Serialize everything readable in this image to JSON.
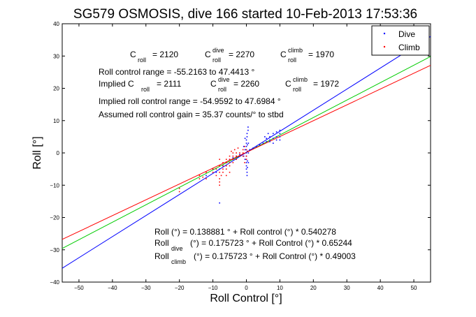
{
  "chart_data": {
    "type": "scatter",
    "title": "SG579 OSMOSIS, dive 166 started 10-Feb-2013 17:53:36",
    "xlabel": "Roll Control [°]",
    "ylabel": "Roll [°]",
    "xlim": [
      -55,
      55
    ],
    "ylim": [
      -40,
      40
    ],
    "xticks": [
      -50,
      -40,
      -30,
      -20,
      -10,
      0,
      10,
      20,
      30,
      40,
      50
    ],
    "yticks": [
      -40,
      -30,
      -20,
      -10,
      0,
      10,
      20,
      30,
      40
    ],
    "grid": false,
    "legend": {
      "placement": "top-right",
      "entries": [
        {
          "label": "Dive",
          "color": "#0000ff"
        },
        {
          "label": "Climb",
          "color": "#ff0000"
        }
      ]
    },
    "series": [
      {
        "name": "Dive",
        "color": "#0000ff",
        "points": [
          [
            0,
            -5
          ],
          [
            0,
            -4
          ],
          [
            0,
            -3
          ],
          [
            0,
            -2
          ],
          [
            0,
            -1
          ],
          [
            0,
            0
          ],
          [
            0,
            1
          ],
          [
            0,
            2
          ],
          [
            0,
            3
          ],
          [
            0,
            4
          ],
          [
            0.3,
            -4.5
          ],
          [
            0.3,
            -2.5
          ],
          [
            0.3,
            0.5
          ],
          [
            0.3,
            2.5
          ],
          [
            0.6,
            -3
          ],
          [
            0.6,
            0
          ],
          [
            0.6,
            3
          ],
          [
            -0.4,
            -2
          ],
          [
            -0.4,
            1
          ],
          [
            -0.4,
            4.5
          ],
          [
            -0.8,
            -1
          ],
          [
            -0.8,
            2
          ],
          [
            0.2,
            5
          ],
          [
            0.2,
            6
          ],
          [
            0.5,
            7
          ],
          [
            0.5,
            8
          ],
          [
            0.2,
            -6
          ],
          [
            0.2,
            -7
          ],
          [
            1,
            1
          ],
          [
            2,
            1.5
          ],
          [
            3,
            2
          ],
          [
            4,
            2.5
          ],
          [
            5,
            3
          ],
          [
            6,
            3.5
          ],
          [
            7,
            4
          ],
          [
            8,
            4.5
          ],
          [
            9,
            5
          ],
          [
            7,
            5
          ],
          [
            8,
            6
          ],
          [
            9,
            6.5
          ],
          [
            10,
            6
          ],
          [
            10,
            5
          ],
          [
            10,
            7
          ],
          [
            6,
            4.5
          ],
          [
            7,
            3.5
          ],
          [
            8,
            3
          ],
          [
            9,
            4
          ],
          [
            10,
            4
          ],
          [
            5.5,
            5
          ],
          [
            6.5,
            6
          ],
          [
            -8,
            -15.5
          ],
          [
            -12,
            -7
          ],
          [
            -10,
            -5
          ],
          [
            -9,
            -6
          ],
          [
            -8,
            -5
          ],
          [
            -7,
            -4
          ],
          [
            -6,
            -3
          ],
          [
            -5,
            -2
          ],
          [
            -4,
            -1.5
          ],
          [
            -3,
            -1
          ],
          [
            -2,
            -0.5
          ]
        ]
      },
      {
        "name": "Climb",
        "color": "#ff0000",
        "points": [
          [
            -20,
            -12
          ],
          [
            -20,
            -11
          ],
          [
            -14,
            -8
          ],
          [
            -14,
            -7
          ],
          [
            -13,
            -7.5
          ],
          [
            -12,
            -8
          ],
          [
            -12,
            -6
          ],
          [
            -10,
            -6
          ],
          [
            -10,
            -5
          ],
          [
            -9,
            -7
          ],
          [
            -9,
            -5
          ],
          [
            -8,
            -10
          ],
          [
            -8,
            -8
          ],
          [
            -8,
            -6
          ],
          [
            -8,
            -4
          ],
          [
            -8,
            -2
          ],
          [
            -7,
            -6
          ],
          [
            -7,
            -5
          ],
          [
            -7,
            -4
          ],
          [
            -7,
            -3
          ],
          [
            -6,
            -5
          ],
          [
            -6,
            -4
          ],
          [
            -6,
            -3
          ],
          [
            -6,
            -2
          ],
          [
            -5,
            -4
          ],
          [
            -5,
            -3
          ],
          [
            -5,
            -2
          ],
          [
            -5,
            -1
          ],
          [
            -4,
            -3
          ],
          [
            -4,
            -2
          ],
          [
            -4,
            -1
          ],
          [
            -4,
            0
          ],
          [
            -3,
            -2
          ],
          [
            -3,
            -1
          ],
          [
            -3,
            0
          ],
          [
            -2,
            -1
          ],
          [
            -2,
            0
          ],
          [
            -1,
            -1
          ],
          [
            -1,
            0
          ],
          [
            -1,
            1
          ],
          [
            -0.5,
            -3
          ],
          [
            -0.5,
            2
          ],
          [
            0,
            -2
          ],
          [
            0,
            -1
          ],
          [
            0,
            1
          ],
          [
            0.5,
            0.5
          ],
          [
            -5,
            -6
          ],
          [
            -6,
            -7
          ],
          [
            -4.5,
            0.5
          ],
          [
            -3.5,
            1
          ],
          [
            -2.5,
            1.5
          ],
          [
            -8,
            -9
          ],
          [
            -7.5,
            -7
          ]
        ]
      }
    ],
    "fit_lines": [
      {
        "label": "Roll (°) = 0.138881 ° + Roll control (°) * 0.540278",
        "color": "#00cc00",
        "intercept": 0.138881,
        "slope": 0.540278
      },
      {
        "label": "Roll dive (°) = 0.175723 ° + Roll Control (°) * 0.65244",
        "color": "#0000ff",
        "intercept": 0.175723,
        "slope": 0.65244
      },
      {
        "label": "Roll climb (°) = 0.175723 ° + Roll Control (°) * 0.49003",
        "color": "#ff0000",
        "intercept": 0.175723,
        "slope": 0.49003
      }
    ],
    "annotations": {
      "c_roll": {
        "main": "C",
        "sub": "roll",
        "eq": "= 2120"
      },
      "c_roll_dive": {
        "main": "C",
        "sup": "dive",
        "sub": "roll",
        "eq": "= 2270"
      },
      "c_roll_climb": {
        "main": "C",
        "sup": "climb",
        "sub": "roll",
        "eq": "= 1970"
      },
      "range": "Roll control range = -55.2163 to 47.4413 °",
      "implied_prefix": "Implied C",
      "implied_sub": "roll",
      "implied_eq": "= 2111",
      "implied_dive": {
        "main": "C",
        "sup": "dive",
        "sub": "roll",
        "eq": "= 2260"
      },
      "implied_climb": {
        "main": "C",
        "sup": "climb",
        "sub": "roll",
        "eq": "= 1972"
      },
      "implied_range": "Implied roll control range = -54.9592 to 47.6984 °",
      "gain": "Assumed roll control gain = 35.37 counts/° to stbd",
      "eq1": "Roll (°) = 0.138881 ° + Roll control (°) * 0.540278",
      "eq2_main": "Roll",
      "eq2_sub": "dive",
      "eq2_rest": "(°) = 0.175723 ° + Roll Control (°) * 0.65244",
      "eq3_main": "Roll",
      "eq3_sub": "climb",
      "eq3_rest": "(°) = 0.175723 ° + Roll Control (°) * 0.49003"
    }
  }
}
